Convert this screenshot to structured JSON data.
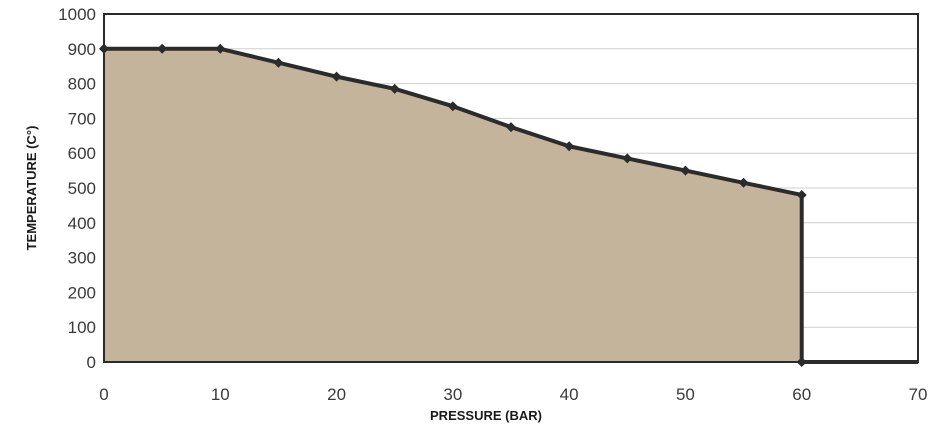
{
  "chart_data": {
    "type": "area",
    "xlabel": "PRESSURE (BAR)",
    "ylabel": "TEMPERATURE (C°)",
    "xlim": [
      0,
      70
    ],
    "ylim": [
      0,
      1000
    ],
    "x_ticks": [
      "0",
      "10",
      "20",
      "30",
      "40",
      "50",
      "60",
      "70"
    ],
    "y_ticks": [
      "0",
      "100",
      "200",
      "300",
      "400",
      "500",
      "600",
      "700",
      "800",
      "900",
      "1000"
    ],
    "grid": true,
    "legend": "none",
    "fill_color": "#c4b49b",
    "line_color": "#2b2b2b",
    "series": [
      {
        "x": [
          0,
          5,
          10,
          15,
          20,
          25,
          30,
          35,
          40,
          45,
          50,
          55,
          60,
          60
        ],
        "y": [
          900,
          900,
          900,
          860,
          820,
          785,
          735,
          675,
          620,
          585,
          550,
          515,
          480,
          0
        ]
      }
    ]
  }
}
